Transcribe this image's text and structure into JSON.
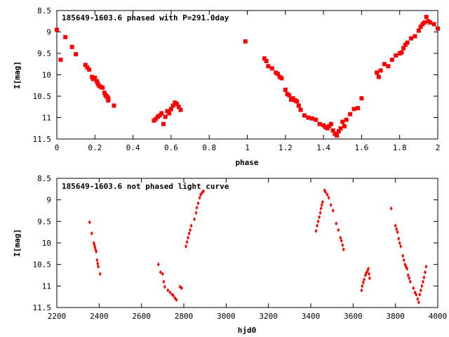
{
  "marker_color": "#ff0000",
  "chart_data": [
    {
      "type": "scatter",
      "title": "185649-1603.6 phased with P=291.0day",
      "xlabel": "phase",
      "ylabel": "I[mag]",
      "xlim": [
        0,
        2
      ],
      "ylim": [
        8.5,
        11.5
      ],
      "y_inverted": true,
      "grid": false,
      "xticks": [
        0,
        0.2,
        0.4,
        0.6,
        0.8,
        1,
        1.2,
        1.4,
        1.6,
        1.8,
        2
      ],
      "xtick_labels": [
        "0",
        "0.2",
        "0.4",
        "0.6",
        "0.8",
        "1",
        "1.2",
        "1.4",
        "1.6",
        "1.8",
        "2"
      ],
      "yticks": [
        8.5,
        9,
        9.5,
        10,
        10.5,
        11,
        11.5
      ],
      "ytick_labels": [
        "8.5",
        "9",
        "9.5",
        "10",
        "10.5",
        "11",
        "11.5"
      ],
      "series": [
        {
          "points": [
            [
              0.0,
              8.95
            ],
            [
              0.02,
              9.65
            ],
            [
              0.045,
              9.12
            ],
            [
              0.08,
              9.35
            ],
            [
              0.1,
              9.52
            ],
            [
              0.15,
              9.77
            ],
            [
              0.16,
              9.83
            ],
            [
              0.17,
              9.88
            ],
            [
              0.185,
              10.05
            ],
            [
              0.19,
              10.1
            ],
            [
              0.2,
              10.07
            ],
            [
              0.21,
              10.15
            ],
            [
              0.215,
              10.2
            ],
            [
              0.22,
              10.25
            ],
            [
              0.23,
              10.28
            ],
            [
              0.24,
              10.3
            ],
            [
              0.25,
              10.42
            ],
            [
              0.255,
              10.47
            ],
            [
              0.26,
              10.5
            ],
            [
              0.265,
              10.52
            ],
            [
              0.27,
              10.55
            ],
            [
              0.27,
              10.6
            ],
            [
              0.3,
              10.72
            ],
            [
              0.51,
              11.07
            ],
            [
              0.52,
              11.03
            ],
            [
              0.53,
              10.98
            ],
            [
              0.54,
              10.95
            ],
            [
              0.55,
              10.9
            ],
            [
              0.56,
              11.15
            ],
            [
              0.57,
              10.98
            ],
            [
              0.58,
              10.85
            ],
            [
              0.59,
              10.9
            ],
            [
              0.6,
              10.8
            ],
            [
              0.61,
              10.72
            ],
            [
              0.62,
              10.65
            ],
            [
              0.63,
              10.68
            ],
            [
              0.64,
              10.75
            ],
            [
              0.65,
              10.82
            ],
            [
              0.99,
              9.22
            ],
            [
              1.09,
              9.62
            ],
            [
              1.1,
              9.68
            ],
            [
              1.11,
              9.8
            ],
            [
              1.13,
              9.85
            ],
            [
              1.15,
              9.95
            ],
            [
              1.16,
              9.98
            ],
            [
              1.17,
              10.05
            ],
            [
              1.18,
              10.08
            ],
            [
              1.2,
              10.35
            ],
            [
              1.21,
              10.45
            ],
            [
              1.22,
              10.48
            ],
            [
              1.23,
              10.58
            ],
            [
              1.24,
              10.55
            ],
            [
              1.25,
              10.6
            ],
            [
              1.26,
              10.62
            ],
            [
              1.27,
              10.72
            ],
            [
              1.28,
              10.82
            ],
            [
              1.3,
              10.95
            ],
            [
              1.32,
              11.0
            ],
            [
              1.34,
              11.02
            ],
            [
              1.36,
              11.05
            ],
            [
              1.38,
              11.15
            ],
            [
              1.4,
              11.18
            ],
            [
              1.41,
              11.22
            ],
            [
              1.42,
              11.25
            ],
            [
              1.43,
              11.2
            ],
            [
              1.44,
              11.15
            ],
            [
              1.45,
              11.3
            ],
            [
              1.46,
              11.38
            ],
            [
              1.47,
              11.42
            ],
            [
              1.48,
              11.32
            ],
            [
              1.49,
              11.25
            ],
            [
              1.5,
              11.1
            ],
            [
              1.51,
              11.2
            ],
            [
              1.52,
              11.05
            ],
            [
              1.54,
              10.92
            ],
            [
              1.56,
              10.8
            ],
            [
              1.58,
              10.78
            ],
            [
              1.6,
              10.55
            ],
            [
              1.68,
              9.95
            ],
            [
              1.69,
              10.05
            ],
            [
              1.7,
              9.9
            ],
            [
              1.72,
              9.75
            ],
            [
              1.74,
              9.8
            ],
            [
              1.76,
              9.65
            ],
            [
              1.78,
              9.55
            ],
            [
              1.8,
              9.5
            ],
            [
              1.81,
              9.48
            ],
            [
              1.82,
              9.38
            ],
            [
              1.83,
              9.3
            ],
            [
              1.84,
              9.25
            ],
            [
              1.86,
              9.15
            ],
            [
              1.88,
              9.1
            ],
            [
              1.9,
              8.97
            ],
            [
              1.91,
              8.88
            ],
            [
              1.92,
              8.82
            ],
            [
              1.93,
              8.78
            ],
            [
              1.94,
              8.65
            ],
            [
              1.95,
              8.75
            ],
            [
              1.96,
              8.78
            ],
            [
              1.98,
              8.82
            ],
            [
              2.0,
              8.92
            ]
          ]
        }
      ]
    },
    {
      "type": "scatter",
      "title": "185649-1603.6 not phased light curve",
      "xlabel": "hjd0",
      "ylabel": "I[mag]",
      "xlim": [
        2200,
        4000
      ],
      "ylim": [
        8.5,
        11.5
      ],
      "y_inverted": true,
      "grid": false,
      "xticks": [
        2200,
        2400,
        2600,
        2800,
        3000,
        3200,
        3400,
        3600,
        3800,
        4000
      ],
      "xtick_labels": [
        "2200",
        "2400",
        "2600",
        "2800",
        "3000",
        "3200",
        "3400",
        "3600",
        "3800",
        "4000"
      ],
      "yticks": [
        8.5,
        9,
        9.5,
        10,
        10.5,
        11,
        11.5
      ],
      "ytick_labels": [
        "8.5",
        "9",
        "9.5",
        "10",
        "10.5",
        "11",
        "11.5"
      ],
      "series": [
        {
          "points": [
            [
              2355,
              9.52
            ],
            [
              2365,
              9.78
            ],
            [
              2375,
              10.0
            ],
            [
              2378,
              10.05
            ],
            [
              2380,
              10.1
            ],
            [
              2383,
              10.15
            ],
            [
              2386,
              10.2
            ],
            [
              2390,
              10.4
            ],
            [
              2393,
              10.48
            ],
            [
              2396,
              10.55
            ],
            [
              2405,
              10.72
            ],
            [
              2680,
              10.5
            ],
            [
              2690,
              10.68
            ],
            [
              2700,
              10.72
            ],
            [
              2705,
              10.9
            ],
            [
              2710,
              11.02
            ],
            [
              2725,
              11.1
            ],
            [
              2735,
              11.15
            ],
            [
              2745,
              11.2
            ],
            [
              2750,
              11.22
            ],
            [
              2758,
              11.28
            ],
            [
              2765,
              11.32
            ],
            [
              2782,
              11.02
            ],
            [
              2790,
              11.05
            ],
            [
              2810,
              10.08
            ],
            [
              2815,
              9.98
            ],
            [
              2820,
              9.88
            ],
            [
              2825,
              9.78
            ],
            [
              2830,
              9.7
            ],
            [
              2835,
              9.6
            ],
            [
              2850,
              9.45
            ],
            [
              2858,
              9.3
            ],
            [
              2862,
              9.18
            ],
            [
              2868,
              9.08
            ],
            [
              2875,
              8.95
            ],
            [
              2880,
              8.88
            ],
            [
              2887,
              8.83
            ],
            [
              2893,
              8.8
            ],
            [
              3425,
              9.72
            ],
            [
              3430,
              9.6
            ],
            [
              3435,
              9.5
            ],
            [
              3440,
              9.4
            ],
            [
              3445,
              9.3
            ],
            [
              3448,
              9.2
            ],
            [
              3452,
              9.12
            ],
            [
              3456,
              9.05
            ],
            [
              3465,
              8.78
            ],
            [
              3470,
              8.82
            ],
            [
              3478,
              8.88
            ],
            [
              3485,
              8.95
            ],
            [
              3495,
              9.12
            ],
            [
              3505,
              9.25
            ],
            [
              3520,
              9.55
            ],
            [
              3530,
              9.7
            ],
            [
              3540,
              9.88
            ],
            [
              3545,
              9.95
            ],
            [
              3550,
              10.05
            ],
            [
              3555,
              10.15
            ],
            [
              3640,
              11.1
            ],
            [
              3643,
              11.0
            ],
            [
              3648,
              10.92
            ],
            [
              3652,
              10.85
            ],
            [
              3658,
              10.75
            ],
            [
              3662,
              10.7
            ],
            [
              3668,
              10.65
            ],
            [
              3672,
              10.6
            ],
            [
              3675,
              10.72
            ],
            [
              3678,
              10.82
            ],
            [
              3780,
              9.2
            ],
            [
              3800,
              9.6
            ],
            [
              3805,
              9.68
            ],
            [
              3810,
              9.75
            ],
            [
              3815,
              9.9
            ],
            [
              3820,
              10.0
            ],
            [
              3825,
              10.08
            ],
            [
              3835,
              10.3
            ],
            [
              3840,
              10.4
            ],
            [
              3845,
              10.5
            ],
            [
              3850,
              10.55
            ],
            [
              3855,
              10.6
            ],
            [
              3860,
              10.75
            ],
            [
              3865,
              10.82
            ],
            [
              3870,
              10.9
            ],
            [
              3885,
              11.05
            ],
            [
              3892,
              11.15
            ],
            [
              3898,
              11.2
            ],
            [
              3905,
              11.3
            ],
            [
              3910,
              11.38
            ],
            [
              3915,
              11.2
            ],
            [
              3920,
              11.1
            ],
            [
              3925,
              11.0
            ],
            [
              3930,
              10.9
            ],
            [
              3935,
              10.8
            ],
            [
              3940,
              10.68
            ],
            [
              3945,
              10.55
            ]
          ]
        }
      ]
    }
  ]
}
